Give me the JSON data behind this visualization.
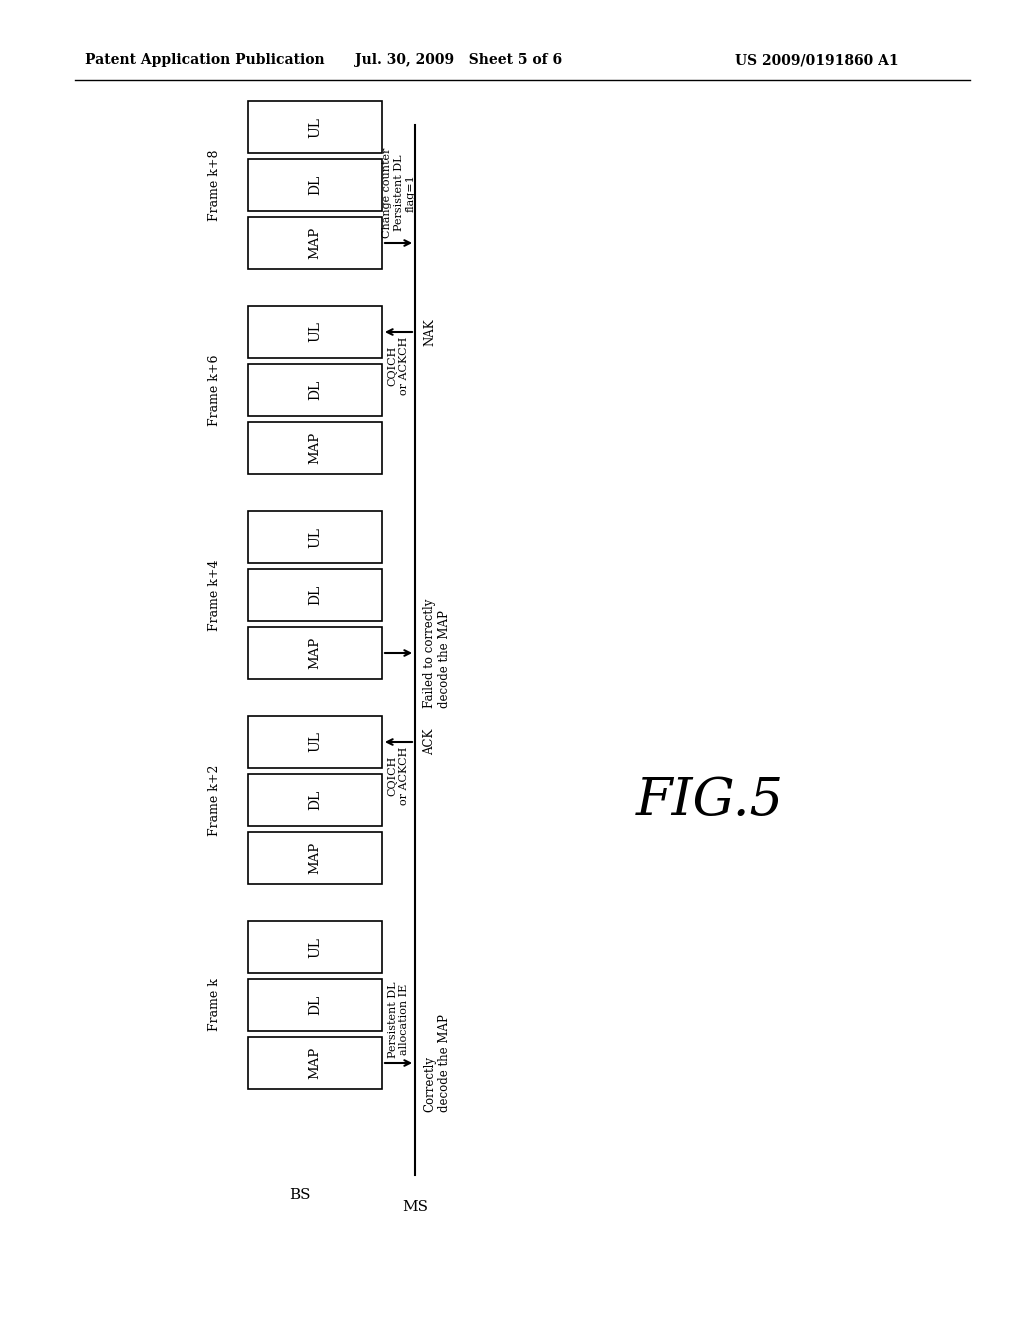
{
  "header_left": "Patent Application Publication",
  "header_mid": "Jul. 30, 2009   Sheet 5 of 6",
  "header_right": "US 2009/0191860 A1",
  "fig_label": "FIG.5",
  "bg_color": "#ffffff",
  "frame_labels": [
    "Frame k",
    "Frame k+2",
    "Frame k+4",
    "Frame k+6",
    "Frame k+8"
  ],
  "bs_label": "BS",
  "ms_label": "MS",
  "arrows": [
    {
      "frame_idx": 0,
      "from_box": "MAP",
      "direction": "to_ms",
      "between_label": "Persistent DL\nallocation IE",
      "ms_label": "Correctly\ndecode the MAP"
    },
    {
      "frame_idx": 1,
      "from_box": "UL",
      "direction": "to_bs",
      "between_label": "CQICH\nor ACKCH",
      "ms_label": "ACK"
    },
    {
      "frame_idx": 2,
      "from_box": "MAP",
      "direction": "to_ms",
      "between_label": "",
      "ms_label": "Failed to correctly\ndecode the MAP"
    },
    {
      "frame_idx": 3,
      "from_box": "UL",
      "direction": "to_bs",
      "between_label": "CQICH\nor ACKCH",
      "ms_label": "NAK"
    },
    {
      "frame_idx": 4,
      "from_box": "MAP",
      "direction": "to_ms",
      "between_label": "Change counter\nPersistent DL\nflag=1",
      "ms_label": ""
    }
  ]
}
